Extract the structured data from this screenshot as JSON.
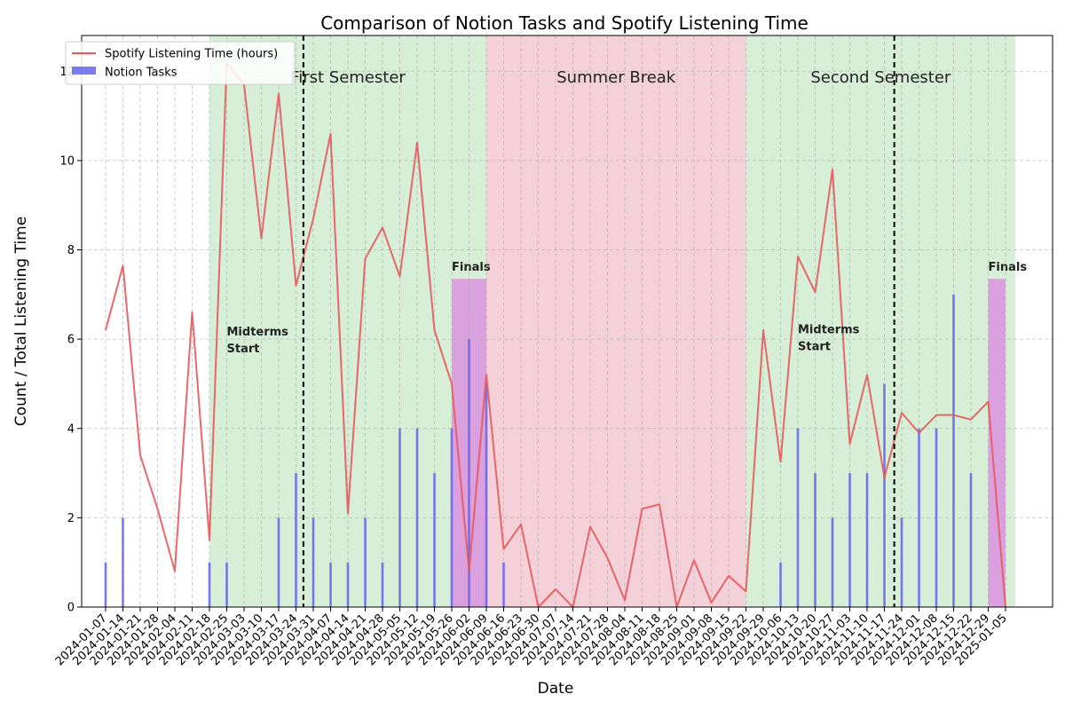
{
  "chart_data": {
    "type": "bar+line",
    "title": "Comparison of Notion Tasks and Spotify Listening Time",
    "xlabel": "Date",
    "ylabel": "Count / Total Listening Time",
    "ylim": [
      0,
      12.8
    ],
    "yticks": [
      0,
      2,
      4,
      6,
      8,
      10,
      12
    ],
    "grid": true,
    "legend_placement": "top-left",
    "x": [
      "2024-01-07",
      "2024-01-14",
      "2024-01-21",
      "2024-01-28",
      "2024-02-04",
      "2024-02-11",
      "2024-02-18",
      "2024-02-25",
      "2024-03-03",
      "2024-03-10",
      "2024-03-17",
      "2024-03-24",
      "2024-03-31",
      "2024-04-07",
      "2024-04-14",
      "2024-04-21",
      "2024-04-28",
      "2024-05-05",
      "2024-05-12",
      "2024-05-19",
      "2024-05-26",
      "2024-06-02",
      "2024-06-09",
      "2024-06-16",
      "2024-06-23",
      "2024-06-30",
      "2024-07-07",
      "2024-07-14",
      "2024-07-21",
      "2024-07-28",
      "2024-08-04",
      "2024-08-11",
      "2024-08-18",
      "2024-08-25",
      "2024-09-01",
      "2024-09-08",
      "2024-09-15",
      "2024-09-22",
      "2024-09-29",
      "2024-10-06",
      "2024-10-13",
      "2024-10-20",
      "2024-10-27",
      "2024-11-03",
      "2024-11-10",
      "2024-11-17",
      "2024-11-24",
      "2024-12-01",
      "2024-12-08",
      "2024-12-15",
      "2024-12-22",
      "2024-12-29",
      "2025-01-05"
    ],
    "series": [
      {
        "name": "Spotify Listening Time (hours)",
        "kind": "line",
        "color": "#e8585a",
        "values": [
          6.2,
          7.65,
          3.4,
          2.2,
          0.8,
          6.6,
          1.5,
          12.2,
          11.7,
          8.25,
          11.5,
          7.2,
          8.7,
          10.6,
          2.1,
          7.8,
          8.5,
          7.4,
          10.4,
          6.2,
          5.0,
          0.8,
          5.2,
          1.3,
          1.85,
          0.0,
          0.4,
          0.0,
          1.8,
          1.1,
          0.15,
          2.2,
          2.3,
          0.0,
          1.05,
          0.1,
          0.7,
          0.35,
          6.2,
          3.25,
          7.85,
          7.05,
          9.8,
          3.65,
          5.2,
          2.9,
          4.35,
          3.9,
          4.3,
          4.3,
          4.2,
          4.6,
          0.0
        ]
      },
      {
        "name": "Notion Tasks",
        "kind": "bar",
        "color": "#6464f0",
        "values": [
          1,
          2,
          0,
          0,
          0,
          0,
          1,
          1,
          0,
          0,
          2,
          3,
          2,
          1,
          1,
          2,
          1,
          4,
          4,
          3,
          4,
          6,
          5,
          1,
          0,
          0,
          0,
          0,
          0,
          0,
          0,
          0,
          0,
          0,
          0,
          0,
          0,
          0,
          0,
          1,
          4,
          3,
          2,
          3,
          3,
          5,
          2,
          4,
          4,
          7,
          3,
          0,
          0
        ]
      }
    ],
    "regions": [
      {
        "label": "First Semester",
        "from": "2024-02-18",
        "to": "2024-06-09",
        "color": "#d6efd6"
      },
      {
        "label": "Summer Break",
        "from": "2024-06-09",
        "to": "2024-09-22",
        "color": "#f4d0d8"
      },
      {
        "label": "Second Semester",
        "from": "2024-09-22",
        "to": "2025-01-09",
        "color": "#d6efd6"
      }
    ],
    "finals_blocks": [
      {
        "label": "Finals",
        "from": "2024-05-26",
        "to": "2024-06-09",
        "height": 7.35,
        "color": "#dba1df"
      },
      {
        "label": "Finals",
        "from": "2024-12-29",
        "to": "2025-01-05",
        "height": 7.35,
        "color": "#dba1df"
      }
    ],
    "vertical_markers": [
      {
        "label": "Midterms Start",
        "at": "2024-03-27",
        "style": "dashed"
      },
      {
        "label": "Midterms Start",
        "at": "2024-11-21",
        "style": "dashed"
      }
    ],
    "midterm_labels": [
      {
        "line1": "Midterms",
        "line2": "Start",
        "at": "2024-02-25",
        "y": 6.0
      },
      {
        "line1": "Midterms",
        "line2": "Start",
        "at": "2024-10-13",
        "y": 6.05
      }
    ]
  }
}
